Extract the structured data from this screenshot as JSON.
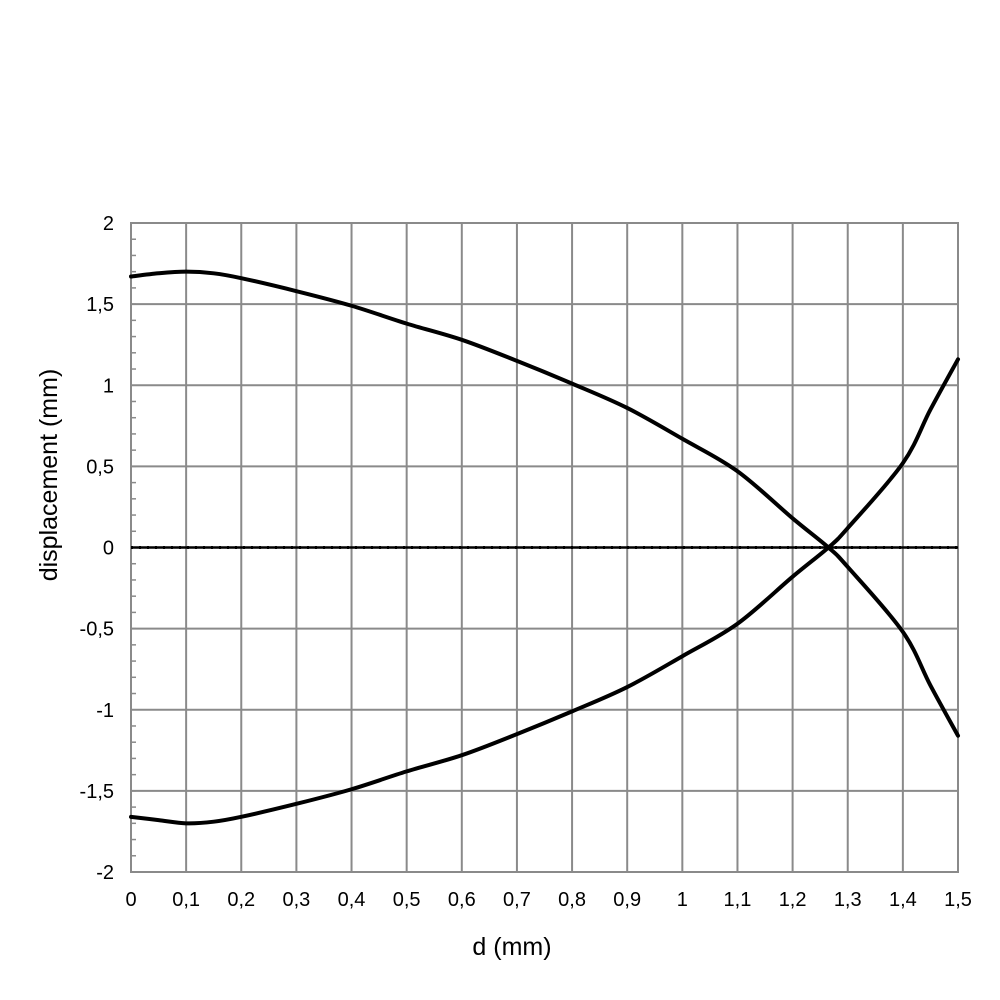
{
  "chart_data": {
    "type": "line",
    "xlabel": "d (mm)",
    "ylabel": "displacement (mm)",
    "xlim": [
      0,
      1.5
    ],
    "ylim": [
      -2,
      2
    ],
    "x_ticks": [
      "0",
      "0,1",
      "0,2",
      "0,3",
      "0,4",
      "0,5",
      "0,6",
      "0,7",
      "0,8",
      "0,9",
      "1",
      "1,1",
      "1,2",
      "1,3",
      "1,4",
      "1,5"
    ],
    "y_ticks": [
      "2",
      "1,5",
      "1",
      "0,5",
      "0",
      "-0,5",
      "-1",
      "-1,5",
      "-2"
    ],
    "grid": true,
    "legend": "none",
    "line_color": "#000000",
    "grid_color": "#8a8a8a",
    "series": [
      {
        "x": [
          0,
          0.05,
          0.1,
          0.15,
          0.2,
          0.3,
          0.4,
          0.5,
          0.6,
          0.7,
          0.8,
          0.9,
          1.0,
          1.1,
          1.2,
          1.265,
          1.3,
          1.4,
          1.45,
          1.5
        ],
        "values": [
          1.67,
          1.69,
          1.7,
          1.69,
          1.66,
          1.58,
          1.49,
          1.38,
          1.28,
          1.15,
          1.01,
          0.86,
          0.67,
          0.47,
          0.18,
          0.0,
          -0.12,
          -0.52,
          -0.85,
          -1.16
        ]
      },
      {
        "x": [
          0,
          0.05,
          0.1,
          0.15,
          0.2,
          0.3,
          0.4,
          0.5,
          0.6,
          0.7,
          0.8,
          0.9,
          1.0,
          1.1,
          1.2,
          1.265,
          1.3,
          1.4,
          1.45,
          1.5
        ],
        "values": [
          -1.66,
          -1.68,
          -1.7,
          -1.69,
          -1.66,
          -1.58,
          -1.49,
          -1.38,
          -1.28,
          -1.15,
          -1.01,
          -0.86,
          -0.67,
          -0.47,
          -0.18,
          0.0,
          0.12,
          0.52,
          0.85,
          1.16
        ]
      }
    ]
  }
}
